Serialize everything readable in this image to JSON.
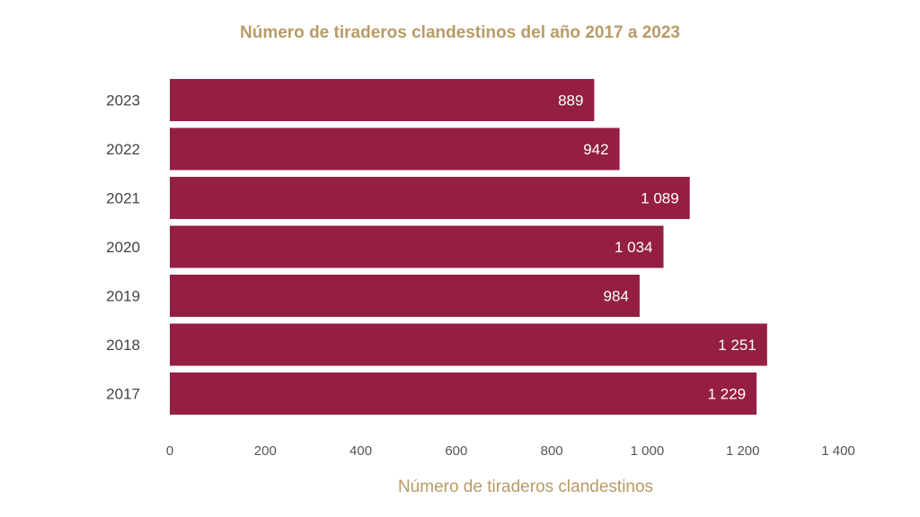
{
  "colors": {
    "bar": "#941f42",
    "title": "#b89b66",
    "axis_title": "#b89b66",
    "text": "#444444"
  },
  "chart_data": {
    "type": "bar",
    "orientation": "horizontal",
    "title": "Número de tiraderos clandestinos del año 2017 a 2023",
    "xlabel": "Número de tiraderos clandestinos",
    "ylabel": "",
    "categories": [
      "2023",
      "2022",
      "2021",
      "2020",
      "2019",
      "2018",
      "2017"
    ],
    "values": [
      889,
      942,
      1089,
      1034,
      984,
      1251,
      1229
    ],
    "data_labels": [
      "889",
      "942",
      "1 089",
      "1 034",
      "984",
      "1 251",
      "1 229"
    ],
    "xlim": [
      0,
      1400
    ],
    "x_ticks": [
      0,
      200,
      400,
      600,
      800,
      1000,
      1200,
      1400
    ],
    "x_tick_labels": [
      "0",
      "200",
      "400",
      "600",
      "800",
      "1 000",
      "1 200",
      "1 400"
    ],
    "grid": false,
    "legend": "none"
  }
}
